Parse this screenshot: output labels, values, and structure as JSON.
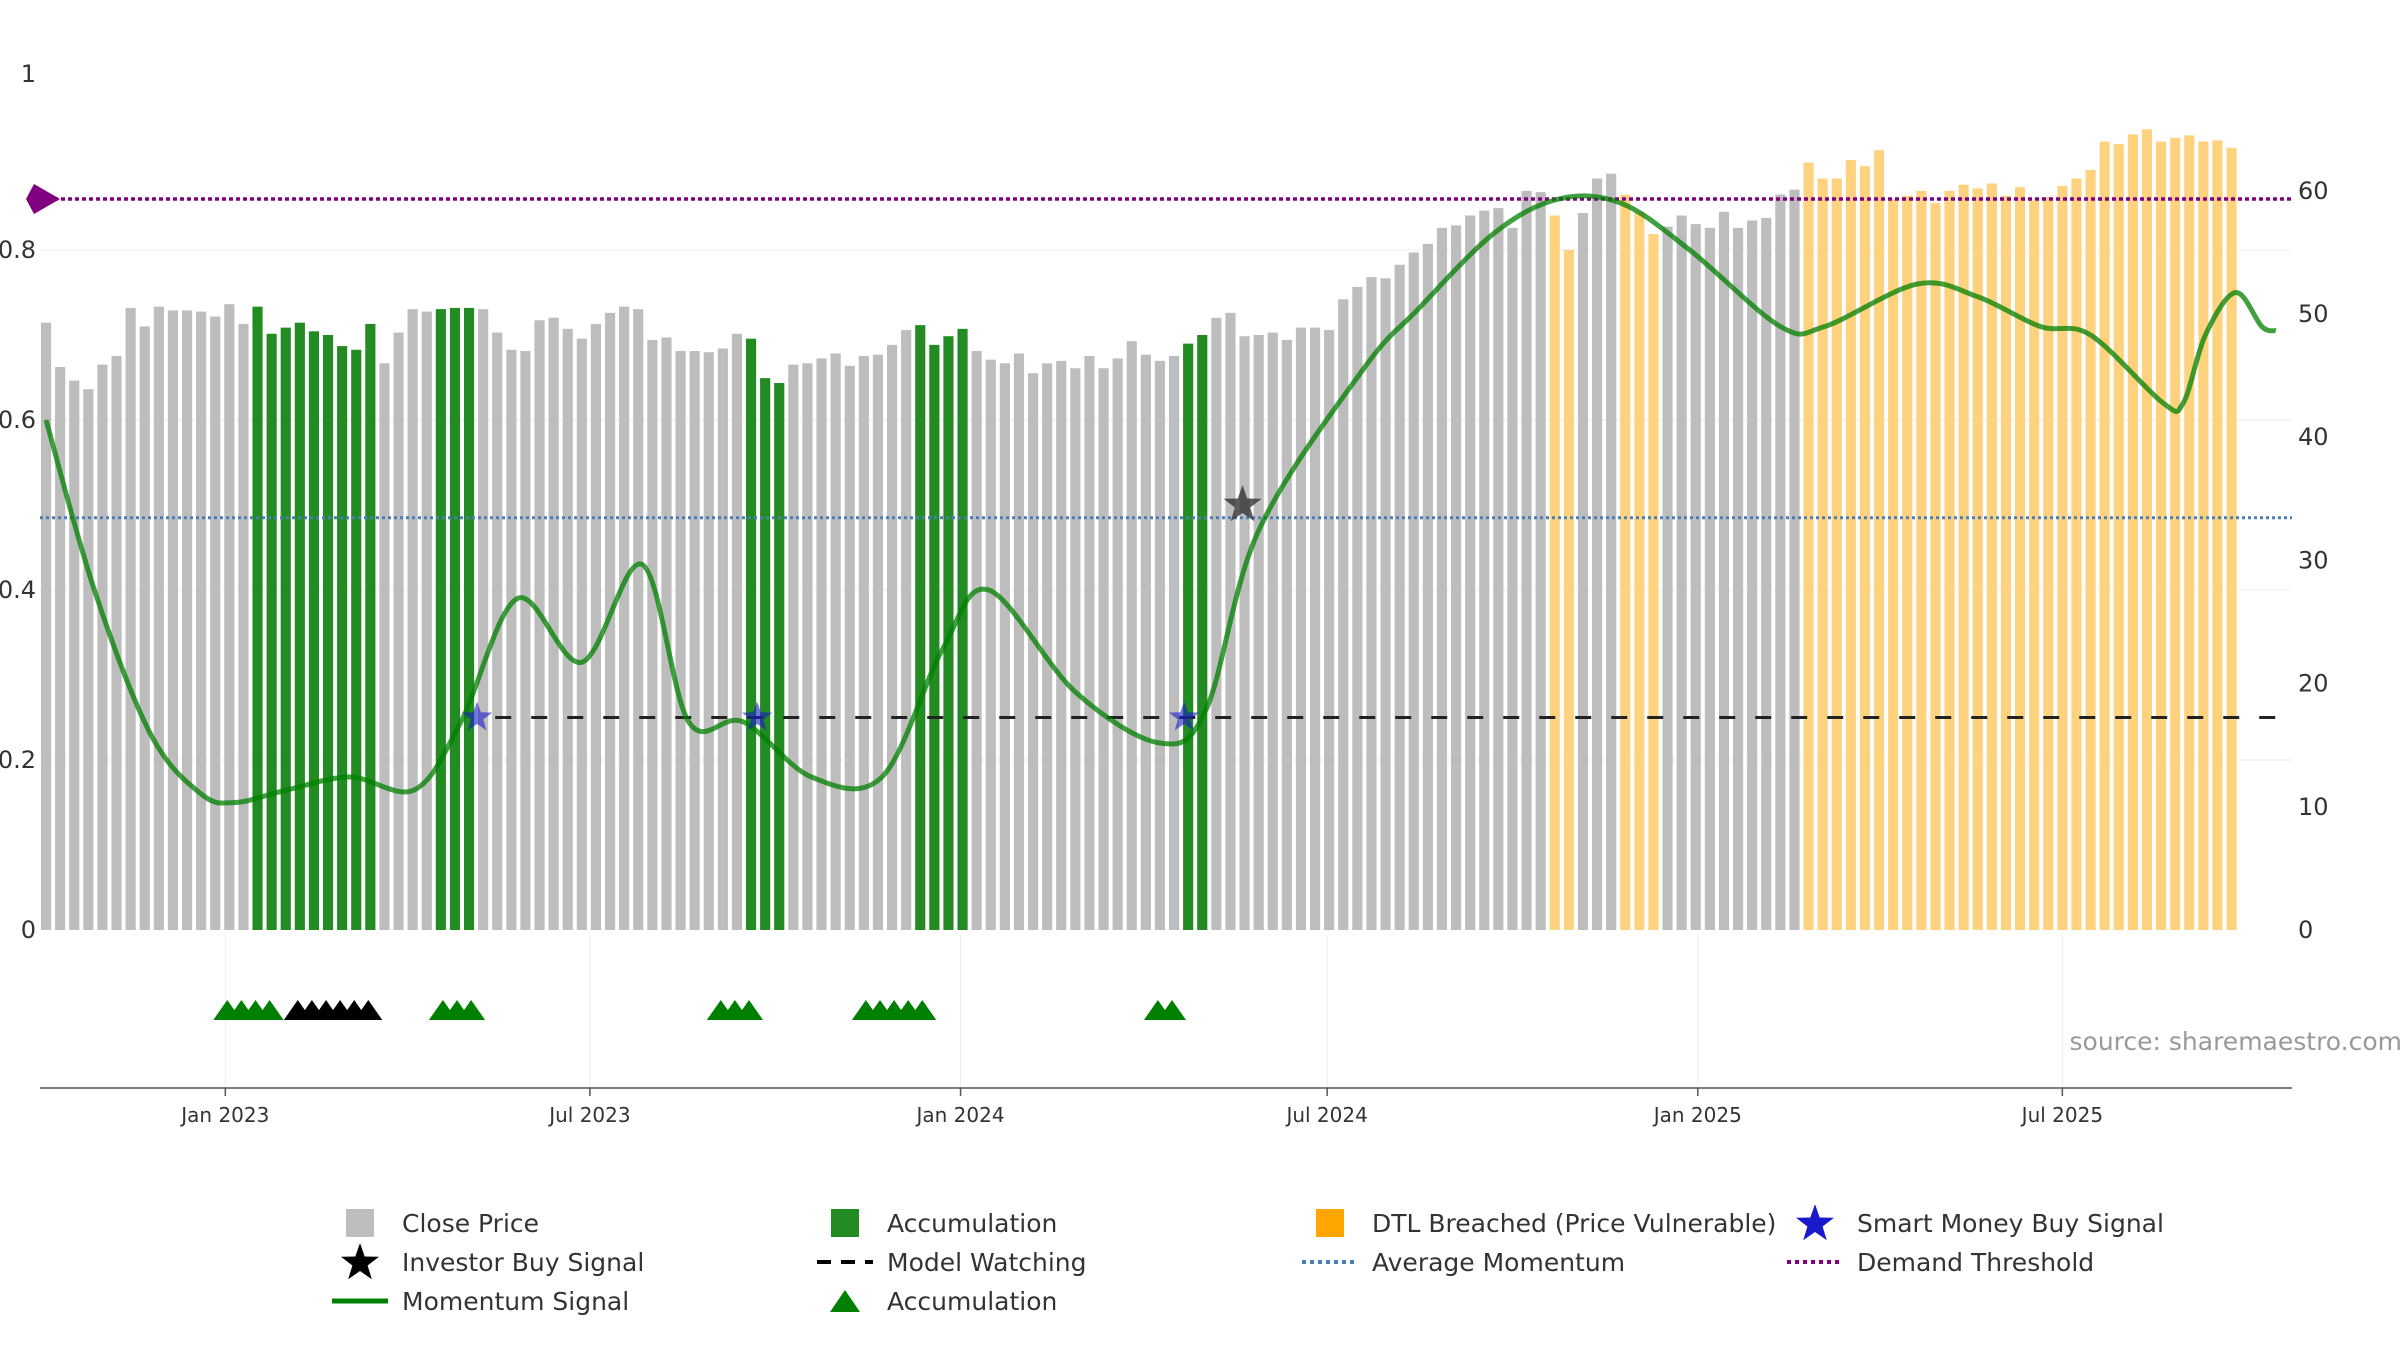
{
  "chart_data": {
    "type": "bar",
    "title": "",
    "x_axis": {
      "ticks": [
        "Jan 2023",
        "Jul 2023",
        "Jan 2024",
        "Jul 2024",
        "Jan 2025",
        "Jul 2025"
      ]
    },
    "y_left": {
      "range": [
        0,
        1
      ],
      "ticks": [
        "0",
        "0.2",
        "0.4",
        "0.6",
        "0.8",
        "1"
      ]
    },
    "y_right": {
      "range": [
        0,
        69
      ],
      "ticks": [
        "0",
        "10",
        "20",
        "30",
        "40",
        "50",
        "60"
      ]
    },
    "grid": true,
    "legend_position": "bottom",
    "source": "source: sharemaestro.com",
    "colors": {
      "close_price": "#bdbdbd",
      "accumulation": "#228b22",
      "dtl_breached": "#ffd280",
      "momentum": "#008000",
      "model_watching": "#222222",
      "average_momentum": "#4a7fb5",
      "demand_threshold": "#800080",
      "smart_money": "#1a1acc",
      "investor_buy": "#000000"
    },
    "legend": [
      {
        "label": "Close Price",
        "symbol": "square",
        "color": "#bdbdbd"
      },
      {
        "label": "Accumulation",
        "symbol": "square",
        "color": "#228b22"
      },
      {
        "label": "DTL Breached (Price Vulnerable)",
        "symbol": "square",
        "color": "#ffa500"
      },
      {
        "label": "Smart Money Buy Signal",
        "symbol": "star",
        "color": "#1a1acc"
      },
      {
        "label": "Investor Buy Signal",
        "symbol": "star",
        "color": "#000000"
      },
      {
        "label": "Model Watching",
        "symbol": "dash",
        "color": "#000000"
      },
      {
        "label": "Average Momentum",
        "symbol": "dot",
        "color": "#4a7fb5"
      },
      {
        "label": "Demand Threshold",
        "symbol": "dot",
        "color": "#800080"
      },
      {
        "label": "Momentum Signal",
        "symbol": "line",
        "color": "#008000"
      },
      {
        "label": "Accumulation",
        "symbol": "triangle",
        "color": "#008000"
      }
    ],
    "bars": {
      "x_start": "2022-10-04",
      "step_days": 7,
      "values": [
        49.3,
        45.7,
        44.6,
        43.9,
        45.9,
        46.6,
        50.5,
        49.0,
        50.6,
        50.3,
        50.3,
        50.2,
        49.8,
        50.8,
        49.2,
        50.6,
        48.4,
        48.9,
        49.3,
        48.6,
        48.3,
        47.4,
        47.1,
        49.2,
        46.0,
        48.5,
        50.4,
        50.2,
        50.4,
        50.5,
        50.5,
        50.4,
        48.5,
        47.1,
        47.0,
        49.5,
        49.7,
        48.8,
        48.0,
        49.2,
        50.1,
        50.6,
        50.4,
        47.9,
        48.1,
        47.0,
        47.0,
        46.9,
        47.2,
        48.4,
        48.0,
        44.8,
        44.4,
        45.9,
        46.0,
        46.4,
        46.8,
        45.8,
        46.6,
        46.7,
        47.5,
        48.7,
        49.1,
        47.5,
        48.2,
        48.8,
        47.0,
        46.3,
        46.0,
        46.8,
        45.2,
        46.0,
        46.2,
        45.6,
        46.6,
        45.6,
        46.4,
        47.8,
        46.7,
        46.2,
        46.6,
        47.6,
        48.3,
        49.7,
        50.1,
        48.2,
        48.3,
        48.5,
        47.9,
        48.9,
        48.9,
        48.7,
        51.2,
        52.2,
        53.0,
        52.9,
        54.0,
        55.0,
        55.7,
        57.0,
        57.2,
        58.0,
        58.4,
        58.6,
        57.0,
        60.0,
        59.9,
        58.0,
        55.2,
        58.2,
        61.0,
        61.4,
        59.7,
        58.3,
        56.5,
        57.1,
        58.0,
        57.3,
        57.0,
        58.3,
        57.0,
        57.6,
        57.8,
        59.7,
        60.1,
        62.3,
        61.0,
        61.0,
        62.5,
        62.0,
        63.3,
        59.3,
        59.6,
        60.0,
        59.0,
        60.0,
        60.5,
        60.2,
        60.6,
        59.6,
        60.3,
        59.2,
        59.5,
        60.4,
        61.0,
        61.7,
        64.0,
        63.8,
        64.6,
        65.0,
        64.0,
        64.3,
        64.5,
        64.0,
        64.1,
        63.5
      ],
      "categories": [
        "gray",
        "gray",
        "gray",
        "gray",
        "gray",
        "gray",
        "gray",
        "gray",
        "gray",
        "gray",
        "gray",
        "gray",
        "gray",
        "gray",
        "gray",
        "acc",
        "acc",
        "acc",
        "acc",
        "acc",
        "acc",
        "acc",
        "acc",
        "acc",
        "gray",
        "gray",
        "gray",
        "gray",
        "acc",
        "acc",
        "acc",
        "gray",
        "gray",
        "gray",
        "gray",
        "gray",
        "gray",
        "gray",
        "gray",
        "gray",
        "gray",
        "gray",
        "gray",
        "gray",
        "gray",
        "gray",
        "gray",
        "gray",
        "gray",
        "gray",
        "acc",
        "acc",
        "acc",
        "gray",
        "gray",
        "gray",
        "gray",
        "gray",
        "gray",
        "gray",
        "gray",
        "gray",
        "acc",
        "acc",
        "acc",
        "acc",
        "gray",
        "gray",
        "gray",
        "gray",
        "gray",
        "gray",
        "gray",
        "gray",
        "gray",
        "gray",
        "gray",
        "gray",
        "gray",
        "gray",
        "gray",
        "acc",
        "acc",
        "gray",
        "gray",
        "gray",
        "gray",
        "gray",
        "gray",
        "gray",
        "gray",
        "gray",
        "gray",
        "gray",
        "gray",
        "gray",
        "gray",
        "gray",
        "gray",
        "gray",
        "gray",
        "gray",
        "gray",
        "gray",
        "gray",
        "gray",
        "gray",
        "dtl",
        "dtl",
        "gray",
        "gray",
        "gray",
        "dtl",
        "dtl",
        "dtl",
        "gray",
        "gray",
        "gray",
        "gray",
        "gray",
        "gray",
        "gray",
        "gray",
        "gray",
        "gray",
        "dtl",
        "dtl",
        "dtl",
        "dtl",
        "dtl",
        "dtl",
        "dtl",
        "dtl",
        "dtl",
        "dtl",
        "dtl",
        "dtl",
        "dtl",
        "dtl",
        "dtl",
        "dtl",
        "dtl",
        "dtl",
        "dtl",
        "dtl",
        "dtl",
        "dtl",
        "dtl",
        "dtl",
        "dtl",
        "dtl",
        "dtl",
        "dtl",
        "dtl",
        "dtl",
        "dtl"
      ]
    },
    "momentum_signal": [
      [
        "2022-10-04",
        0.6
      ],
      [
        "2022-10-28",
        0.4
      ],
      [
        "2022-11-25",
        0.23
      ],
      [
        "2022-12-20",
        0.16
      ],
      [
        "2023-01-06",
        0.15
      ],
      [
        "2023-02-01",
        0.165
      ],
      [
        "2023-03-04",
        0.18
      ],
      [
        "2023-04-05",
        0.165
      ],
      [
        "2023-04-28",
        0.245
      ],
      [
        "2023-05-26",
        0.39
      ],
      [
        "2023-06-27",
        0.315
      ],
      [
        "2023-07-27",
        0.43
      ],
      [
        "2023-08-19",
        0.245
      ],
      [
        "2023-09-15",
        0.245
      ],
      [
        "2023-10-19",
        0.18
      ],
      [
        "2023-11-23",
        0.18
      ],
      [
        "2023-12-23",
        0.33
      ],
      [
        "2024-01-15",
        0.4
      ],
      [
        "2024-02-27",
        0.28
      ],
      [
        "2024-04-09",
        0.22
      ],
      [
        "2024-05-02",
        0.26
      ],
      [
        "2024-05-28",
        0.47
      ],
      [
        "2024-07-19",
        0.66
      ],
      [
        "2024-08-15",
        0.73
      ],
      [
        "2024-09-22",
        0.82
      ],
      [
        "2024-10-24",
        0.86
      ],
      [
        "2024-11-24",
        0.855
      ],
      [
        "2024-12-28",
        0.8
      ],
      [
        "2025-02-11",
        0.71
      ],
      [
        "2025-03-05",
        0.71
      ],
      [
        "2025-04-20",
        0.76
      ],
      [
        "2025-05-20",
        0.745
      ],
      [
        "2025-06-20",
        0.71
      ],
      [
        "2025-07-15",
        0.7
      ],
      [
        "2025-08-20",
        0.62
      ],
      [
        "2025-08-30",
        0.62
      ],
      [
        "2025-09-10",
        0.7
      ],
      [
        "2025-09-25",
        0.75
      ],
      [
        "2025-10-08",
        0.71
      ],
      [
        "2025-10-15",
        0.705
      ]
    ],
    "model_watching": {
      "y": 0.25,
      "from": "2023-05-15"
    },
    "average_momentum": {
      "y": 0.485
    },
    "demand_threshold": {
      "y": 0.86
    },
    "smart_money_buy_signals": [
      [
        "2023-05-06",
        0.25
      ],
      [
        "2023-09-22",
        0.25
      ],
      [
        "2024-04-21",
        0.25
      ]
    ],
    "investor_buy_signals": [
      [
        "2024-05-20",
        0.5
      ]
    ],
    "accumulation_triangles": [
      "2023-01-02",
      "2023-01-09",
      "2023-01-16",
      "2023-01-23",
      "2023-04-19",
      "2023-04-26",
      "2023-05-03",
      "2023-09-04",
      "2023-09-11",
      "2023-09-18",
      "2023-11-15",
      "2023-11-22",
      "2023-11-29",
      "2023-12-06",
      "2023-12-13",
      "2024-04-08",
      "2024-04-15"
    ],
    "investor_triangles": [
      "2023-02-06",
      "2023-02-13",
      "2023-02-20",
      "2023-02-27",
      "2023-03-06",
      "2023-03-13"
    ]
  }
}
